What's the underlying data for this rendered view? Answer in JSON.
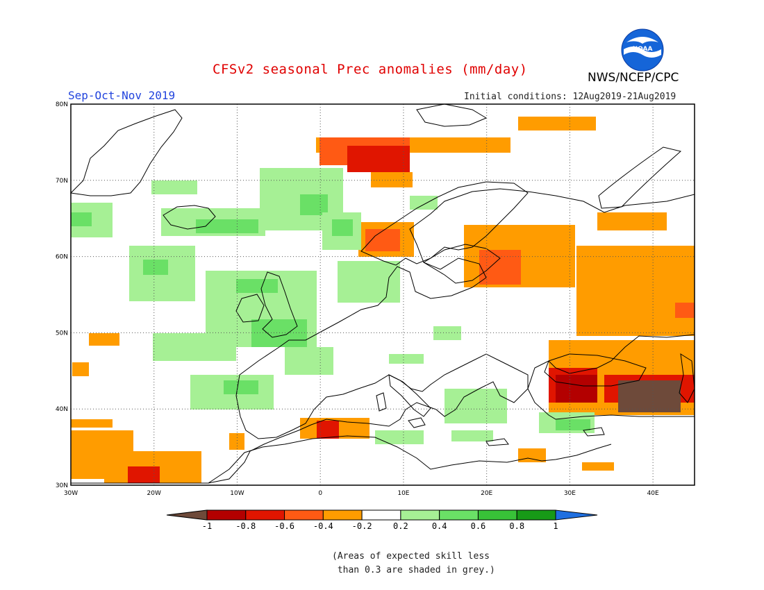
{
  "header": {
    "title": "CFSv2 seasonal Prec anomalies (mm/day)",
    "period": "Sep-Oct-Nov 2019",
    "initial_conditions": "Initial conditions: 12Aug2019-21Aug2019",
    "agency": "NWS/NCEP/CPC",
    "logo_text": "NOAA"
  },
  "map": {
    "extent": {
      "lon": [
        -30,
        45
      ],
      "lat": [
        30,
        80
      ]
    },
    "lat_labels": [
      "30N",
      "40N",
      "50N",
      "60N",
      "70N",
      "80N"
    ],
    "lon_labels": [
      "30W",
      "20W",
      "10W",
      "0",
      "10E",
      "20E",
      "30E",
      "40E"
    ]
  },
  "legend": {
    "labels": [
      "-1",
      "-0.8",
      "-0.6",
      "-0.4",
      "-0.2",
      "0.2",
      "0.4",
      "0.6",
      "0.8",
      "1"
    ],
    "colors": [
      "#6e4a3a",
      "#b30000",
      "#e01500",
      "#ff5a14",
      "#ff9c00",
      "#ffffff",
      "#a6f095",
      "#6ae066",
      "#38c238",
      "#179a17",
      "#1f6fe0"
    ]
  },
  "note": "(Areas of expected skill less\n than 0.3 are shaded in grey.)"
}
